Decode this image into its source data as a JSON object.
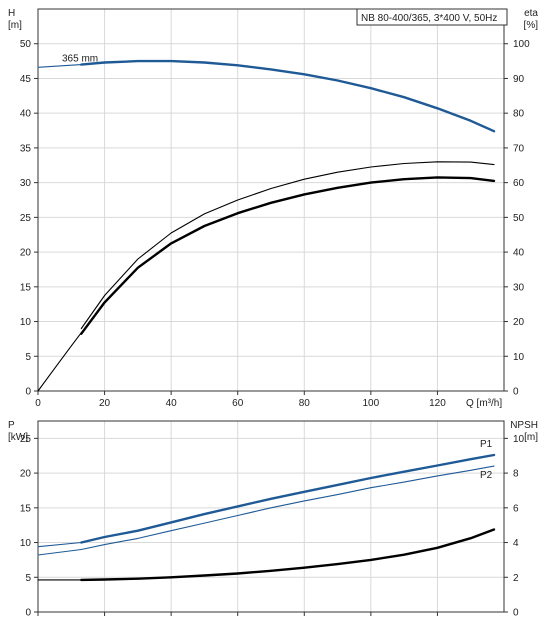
{
  "title_box": "NB 80-400/365, 3*400 V, 50Hz",
  "colors": {
    "blue": "#1f5a96",
    "black": "#000000",
    "grid": "#d9d9d9"
  },
  "chart_data": [
    {
      "type": "line",
      "name": "head-efficiency",
      "y_left_label": [
        "H",
        "[m]"
      ],
      "y_right_label": [
        "eta",
        "[%]"
      ],
      "xlabel": "Q [m³/h]",
      "xlim": [
        0,
        140
      ],
      "x_ticks": [
        0,
        20,
        40,
        60,
        80,
        100,
        120
      ],
      "ylim_left": [
        0,
        50
      ],
      "ylim_left_display_max": 55,
      "y_left_ticks": [
        0,
        5,
        10,
        15,
        20,
        25,
        30,
        35,
        40,
        45,
        50
      ],
      "ylim_right": [
        0,
        100
      ],
      "y_right_ticks": [
        0,
        10,
        20,
        30,
        40,
        50,
        60,
        70,
        80,
        90,
        100
      ],
      "grid": true,
      "annotation": "365 mm",
      "series": [
        {
          "key": "H_ext",
          "axis": "left",
          "color": "blue",
          "weight": "thin",
          "x": [
            0,
            13
          ],
          "y": [
            46.6,
            47.0
          ]
        },
        {
          "key": "H",
          "axis": "left",
          "color": "blue",
          "weight": "thick",
          "x": [
            13,
            20,
            30,
            40,
            50,
            60,
            70,
            80,
            90,
            100,
            110,
            120,
            130,
            137
          ],
          "y": [
            47.0,
            47.3,
            47.5,
            47.5,
            47.3,
            46.9,
            46.3,
            45.6,
            44.7,
            43.6,
            42.3,
            40.7,
            38.9,
            37.4
          ]
        },
        {
          "key": "eta_ext",
          "axis": "right",
          "color": "black",
          "weight": "thin",
          "x": [
            0,
            5,
            10,
            13
          ],
          "y": [
            0,
            6.5,
            13,
            16.8
          ]
        },
        {
          "key": "eta",
          "axis": "right",
          "color": "black",
          "weight": "thin",
          "x": [
            13,
            20,
            30,
            40,
            50,
            60,
            70,
            80,
            90,
            100,
            110,
            120,
            130,
            137
          ],
          "y": [
            18.0,
            27.5,
            38.0,
            45.5,
            51.0,
            55.0,
            58.3,
            61.0,
            63.0,
            64.5,
            65.5,
            66.0,
            65.9,
            65.2
          ]
        },
        {
          "key": "eta_w",
          "axis": "right",
          "color": "black",
          "weight": "thick",
          "x": [
            13,
            20,
            30,
            40,
            50,
            60,
            70,
            80,
            90,
            100,
            110,
            120,
            130,
            137
          ],
          "y": [
            16.5,
            25.5,
            35.5,
            42.5,
            47.5,
            51.2,
            54.2,
            56.6,
            58.5,
            60.0,
            61.0,
            61.5,
            61.3,
            60.5
          ]
        }
      ]
    },
    {
      "type": "line",
      "name": "power-npsh",
      "y_left_label": [
        "P",
        "[kW]"
      ],
      "y_right_label": [
        "NPSH",
        "[m]"
      ],
      "xlim": [
        0,
        140
      ],
      "x_ticks": [
        0,
        20,
        40,
        60,
        80,
        100,
        120
      ],
      "ylim_left": [
        0,
        25
      ],
      "ylim_left_display_max": 27.5,
      "y_left_ticks": [
        0,
        5,
        10,
        15,
        20,
        25
      ],
      "ylim_right": [
        0,
        10
      ],
      "y_right_ticks": [
        0,
        2,
        4,
        6,
        8,
        10
      ],
      "grid": true,
      "series": [
        {
          "key": "P1_ext",
          "axis": "left",
          "color": "blue",
          "weight": "thin",
          "x": [
            0,
            13
          ],
          "y": [
            9.4,
            10.0
          ]
        },
        {
          "key": "P1",
          "axis": "left",
          "color": "blue",
          "weight": "thick",
          "label": "P1",
          "x": [
            13,
            20,
            30,
            40,
            50,
            60,
            70,
            80,
            90,
            100,
            110,
            120,
            130,
            137
          ],
          "y": [
            10.0,
            10.8,
            11.7,
            12.9,
            14.1,
            15.2,
            16.3,
            17.3,
            18.3,
            19.3,
            20.2,
            21.1,
            22.0,
            22.6
          ]
        },
        {
          "key": "P2_ext",
          "axis": "left",
          "color": "blue",
          "weight": "thin",
          "x": [
            0,
            13
          ],
          "y": [
            8.2,
            9.0
          ]
        },
        {
          "key": "P2",
          "axis": "left",
          "color": "blue",
          "weight": "thin",
          "label": "P2",
          "x": [
            13,
            20,
            30,
            40,
            50,
            60,
            70,
            80,
            90,
            100,
            110,
            120,
            130,
            137
          ],
          "y": [
            9.0,
            9.7,
            10.6,
            11.7,
            12.8,
            13.9,
            15.0,
            16.0,
            16.9,
            17.9,
            18.7,
            19.6,
            20.4,
            21.0
          ]
        },
        {
          "key": "NPSH_ext",
          "axis": "right",
          "color": "black",
          "weight": "thin",
          "x": [
            0,
            13
          ],
          "y": [
            1.85,
            1.85
          ]
        },
        {
          "key": "NPSH",
          "axis": "right",
          "color": "black",
          "weight": "thick",
          "x": [
            13,
            20,
            30,
            40,
            50,
            60,
            70,
            80,
            90,
            100,
            110,
            120,
            130,
            137
          ],
          "y": [
            1.85,
            1.87,
            1.92,
            2.0,
            2.1,
            2.22,
            2.37,
            2.55,
            2.76,
            3.0,
            3.3,
            3.7,
            4.25,
            4.75
          ]
        }
      ]
    }
  ]
}
